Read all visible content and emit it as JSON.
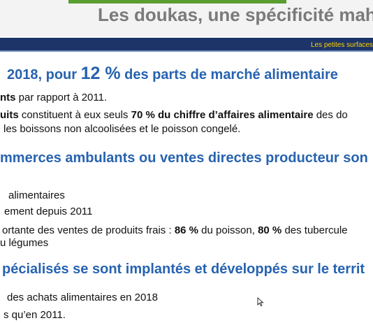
{
  "title": "Les doukas, une spécificité mahorais",
  "banner": "Les petites surfaces a",
  "sections": [
    {
      "heading": [
        {
          "text": "2018, pour "
        },
        {
          "text": "12 %",
          "big": true
        },
        {
          "text": " des parts de marché alimentaire"
        }
      ],
      "lines": [
        [
          {
            "text": "nts",
            "bold": true
          },
          {
            "text": " par rapport à 2011."
          }
        ],
        [
          {
            "text": "uits",
            "bold": true
          },
          {
            "text": " constituent à eux seuls "
          },
          {
            "text": "70 % du chiffre d’affaires alimentaire",
            "bold": true
          },
          {
            "text": " des do"
          }
        ],
        [
          {
            "text": "les boissons non alcoolisées et le poisson congelé."
          }
        ]
      ]
    },
    {
      "heading": [
        {
          "text": "mmerces ambulants ou ventes directes producteur son"
        }
      ],
      "lines": [
        [
          {
            "text": "alimentaires"
          }
        ],
        [
          {
            "text": "ement depuis 2011"
          }
        ],
        [
          {
            "text": "ortante des ventes de produits frais : "
          },
          {
            "text": "86 %",
            "bold": true
          },
          {
            "text": " du poisson, "
          },
          {
            "text": "80 %",
            "bold": true
          },
          {
            "text": " des tubercule"
          }
        ],
        [
          {
            "text": "u légumes"
          }
        ]
      ]
    },
    {
      "heading": [
        {
          "text": "pécialisés se sont implantés et développés sur le territ"
        }
      ],
      "lines": [
        [
          {
            "text": "des achats alimentaires en 2018"
          }
        ],
        [
          {
            "text": "s qu’en 2011."
          }
        ]
      ]
    }
  ]
}
